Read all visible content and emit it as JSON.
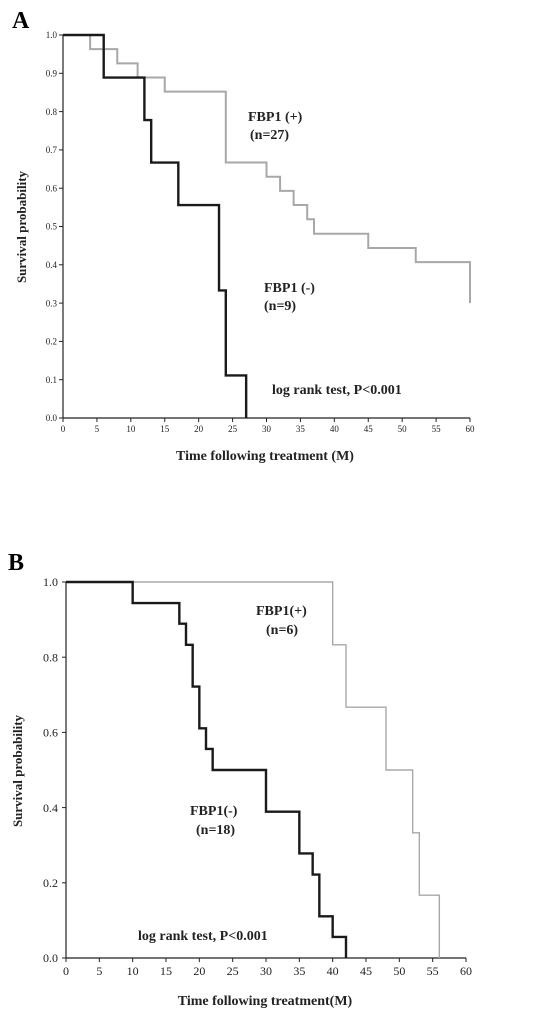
{
  "chart_data": [
    {
      "panel": "A",
      "type": "line",
      "step": true,
      "xlabel": "Time following treatment (M)",
      "ylabel": "Survival probability",
      "xlim": [
        0,
        60
      ],
      "ylim": [
        0.0,
        1.0
      ],
      "xticks": [
        "0",
        "5",
        "10",
        "15",
        "20",
        "25",
        "30",
        "35",
        "40",
        "45",
        "50",
        "55",
        "60"
      ],
      "yticks": [
        "0.0",
        "0.1",
        "0.2",
        "0.3",
        "0.4",
        "0.5",
        "0.6",
        "0.7",
        "0.8",
        "0.9",
        "1.0"
      ],
      "series": [
        {
          "name": "FBP1 (+)",
          "n_label": "(n=27)",
          "color": "#a8a8a8",
          "x": [
            0,
            4,
            8,
            11,
            15,
            16,
            24,
            30,
            32,
            34,
            36,
            37,
            45,
            52,
            60
          ],
          "y": [
            1.0,
            0.963,
            0.926,
            0.889,
            0.852,
            0.852,
            0.667,
            0.63,
            0.593,
            0.556,
            0.519,
            0.481,
            0.444,
            0.407,
            0.3
          ]
        },
        {
          "name": "FBP1 (-)",
          "n_label": "(n=9)",
          "color": "#1a1a1a",
          "x": [
            0,
            6,
            12,
            13,
            17,
            23,
            24,
            27
          ],
          "y": [
            1.0,
            0.889,
            0.778,
            0.667,
            0.556,
            0.333,
            0.111,
            0.0
          ]
        }
      ],
      "annotation": "log rank test, P<0.001"
    },
    {
      "panel": "B",
      "type": "line",
      "step": true,
      "xlabel": "Time following treatment(M)",
      "ylabel": "Survival probability",
      "xlim": [
        0,
        60
      ],
      "ylim": [
        0.0,
        1.0
      ],
      "xticks": [
        "0",
        "5",
        "10",
        "15",
        "20",
        "25",
        "30",
        "35",
        "40",
        "45",
        "50",
        "55",
        "60"
      ],
      "yticks": [
        "0.0",
        "0.2",
        "0.4",
        "0.6",
        "0.8",
        "1.0"
      ],
      "series": [
        {
          "name": "FBP1(+)",
          "n_label": "(n=6)",
          "color": "#a8a8a8",
          "x": [
            0,
            40,
            42,
            48,
            52,
            53,
            56
          ],
          "y": [
            1.0,
            0.833,
            0.667,
            0.5,
            0.333,
            0.167,
            0.0
          ]
        },
        {
          "name": "FBP1(-)",
          "n_label": "(n=18)",
          "color": "#1a1a1a",
          "x": [
            0,
            10,
            17,
            18,
            19,
            20,
            21,
            22,
            30,
            35,
            37,
            38,
            40,
            42
          ],
          "y": [
            1.0,
            0.944,
            0.889,
            0.833,
            0.722,
            0.611,
            0.556,
            0.5,
            0.389,
            0.278,
            0.222,
            0.111,
            0.056,
            0.0
          ]
        }
      ],
      "annotation": "log rank test, P<0.001"
    }
  ]
}
